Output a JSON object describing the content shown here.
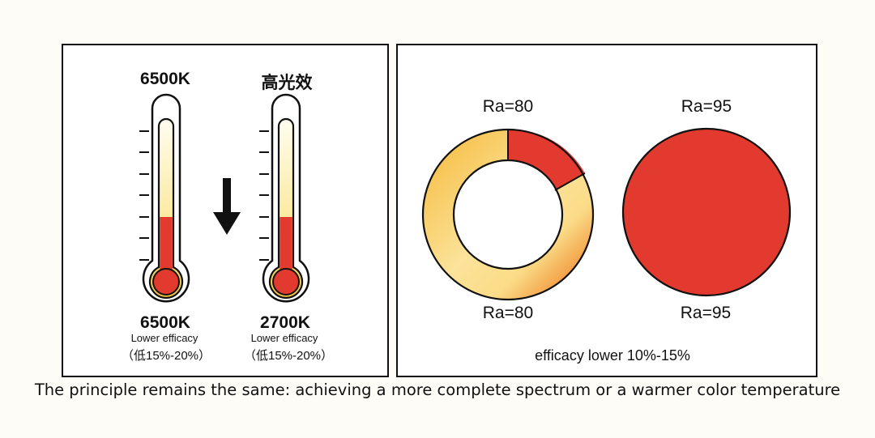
{
  "left_panel": {
    "thermometer_1": {
      "top_label": "6500K",
      "bottom_label": "6500K",
      "efficacy_text": "Lower efficacy",
      "range_text": "（低15%-20%）"
    },
    "thermometer_2": {
      "top_label": "高光效",
      "bottom_label": "2700K",
      "efficacy_text": "Lower efficacy",
      "range_text": "（低15%-20%）"
    },
    "arrow_icon": "down-arrow"
  },
  "right_panel": {
    "ring": {
      "top_label": "Ra=80",
      "bottom_label": "Ra=80"
    },
    "disc": {
      "top_label": "Ra=95",
      "bottom_label": "Ra=95"
    },
    "efficacy_text": "efficacy lower 10%-15%"
  },
  "caption": "The principle remains the same: achieving a more complete spectrum or a warmer color temperature",
  "colors": {
    "red": "#e23a2f",
    "yellow": "#f5c542",
    "pale_yellow": "#fdf6c8",
    "orange": "#ef8a35",
    "outline": "#111111"
  }
}
